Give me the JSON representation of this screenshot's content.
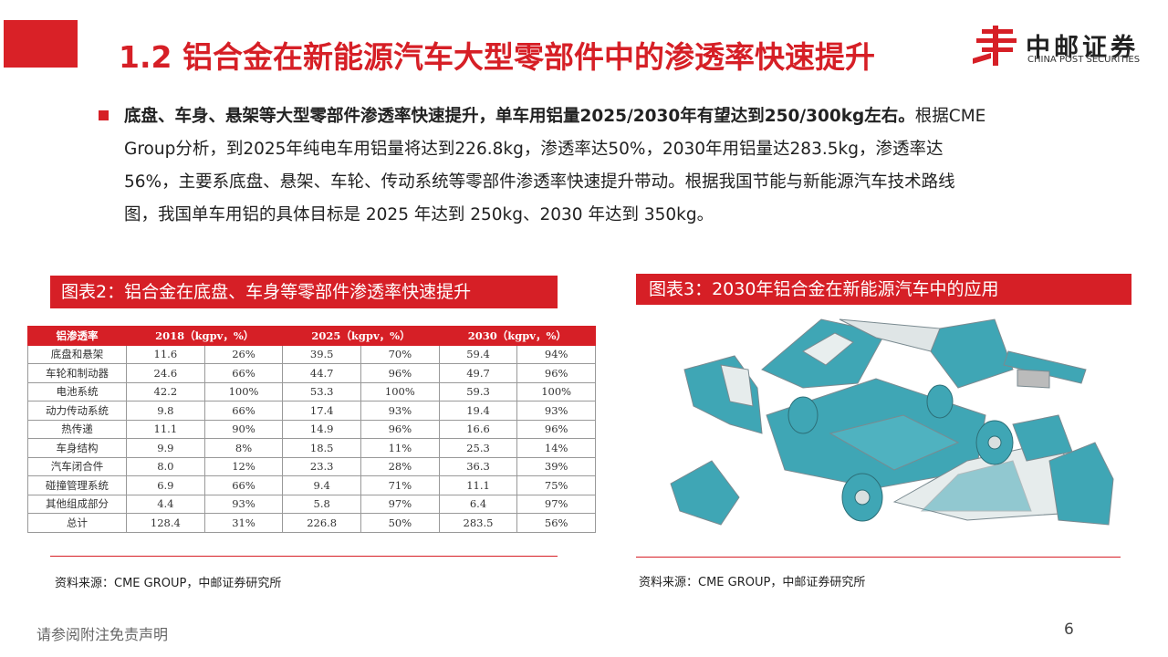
{
  "header": {
    "title": "1.2 铝合金在新能源汽车大型零部件中的渗透率快速提升"
  },
  "logo": {
    "name": "中邮证券",
    "subtitle": "CHINA POST SECURITIES"
  },
  "body": {
    "bold": "底盘、车身、悬架等大型零部件渗透率快速提升，单车用铝量2025/2030年有望达到250/300kg左右。",
    "text": "根据CME Group分析，到2025年纯电车用铝量将达到226.8kg，渗透率达50%，2030年用铝量达283.5kg，渗透率达56%，主要系底盘、悬架、车轮、传动系统等零部件渗透率快速提升带动。根据我国节能与新能源汽车技术路线图，我国单车用铝的具体目标是 2025 年达到 250kg、2030 年达到 350kg。"
  },
  "figure2": {
    "title": "图表2：铝合金在底盘、车身等零部件渗透率快速提升",
    "table": {
      "header": [
        "铝渗透率",
        "2018（kgpv，%）",
        "2025（kgpv，%）",
        "2030（kgpv，%）"
      ],
      "rows": [
        [
          "底盘和悬架",
          "11.6",
          "26%",
          "39.5",
          "70%",
          "59.4",
          "94%"
        ],
        [
          "车轮和制动器",
          "24.6",
          "66%",
          "44.7",
          "96%",
          "49.7",
          "96%"
        ],
        [
          "电池系统",
          "42.2",
          "100%",
          "53.3",
          "100%",
          "59.3",
          "100%"
        ],
        [
          "动力传动系统",
          "9.8",
          "66%",
          "17.4",
          "93%",
          "19.4",
          "93%"
        ],
        [
          "热传递",
          "11.1",
          "90%",
          "14.9",
          "96%",
          "16.6",
          "96%"
        ],
        [
          "车身结构",
          "9.9",
          "8%",
          "18.5",
          "11%",
          "25.3",
          "14%"
        ],
        [
          "汽车闭合件",
          "8.0",
          "12%",
          "23.3",
          "28%",
          "36.3",
          "39%"
        ],
        [
          "碰撞管理系统",
          "6.9",
          "66%",
          "9.4",
          "71%",
          "11.1",
          "75%"
        ],
        [
          "其他组成部分",
          "4.4",
          "93%",
          "5.8",
          "97%",
          "6.4",
          "97%"
        ],
        [
          "总计",
          "128.4",
          "31%",
          "226.8",
          "50%",
          "283.5",
          "56%"
        ]
      ]
    },
    "source": "资料来源：CME GROUP，中邮证券研究所"
  },
  "figure3": {
    "title": "图表3：2030年铝合金在新能源汽车中的应用",
    "source": "资料来源：CME GROUP，中邮证券研究所"
  },
  "footer": {
    "disclaimer": "请参阅附注免责声明",
    "page": "6"
  }
}
